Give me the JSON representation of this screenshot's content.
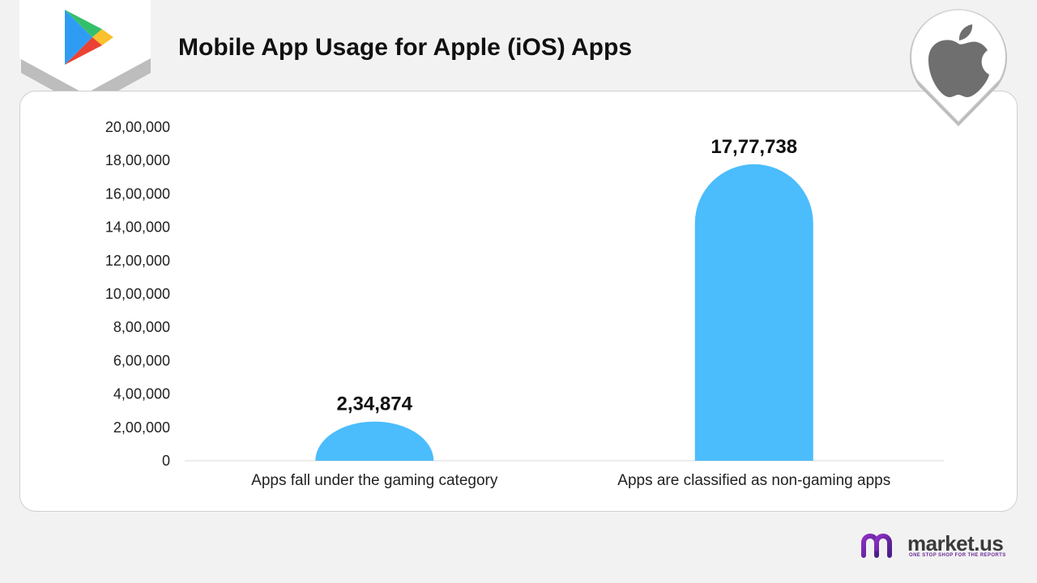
{
  "title": "Mobile App Usage for Apple (iOS) Apps",
  "colors": {
    "bar": "#4bbcfc",
    "background": "#f2f2f2",
    "card": "#ffffff",
    "text": "#111111",
    "brand_purple": "#6a2a9a"
  },
  "icons": {
    "left_badge": "google-play-icon",
    "right_badge": "apple-icon"
  },
  "brand": {
    "name": "market.us",
    "tagline": "ONE STOP SHOP FOR THE REPORTS"
  },
  "chart_data": {
    "type": "bar",
    "title": "Mobile App Usage for Apple (iOS) Apps",
    "categories": [
      "Apps fall under the gaming category",
      "Apps are classified as non-gaming apps"
    ],
    "values": [
      234874,
      1777738
    ],
    "value_labels": [
      "2,34,874",
      "17,77,738"
    ],
    "ylim": [
      0,
      2000000
    ],
    "yticks": [
      0,
      200000,
      400000,
      600000,
      800000,
      1000000,
      1200000,
      1400000,
      1600000,
      1800000,
      2000000
    ],
    "ytick_labels": [
      "0",
      "2,00,000",
      "4,00,000",
      "6,00,000",
      "8,00,000",
      "10,00,000",
      "12,00,000",
      "14,00,000",
      "16,00,000",
      "18,00,000",
      "20,00,000"
    ],
    "xlabel": "",
    "ylabel": "",
    "grid": false,
    "legend": "none"
  }
}
